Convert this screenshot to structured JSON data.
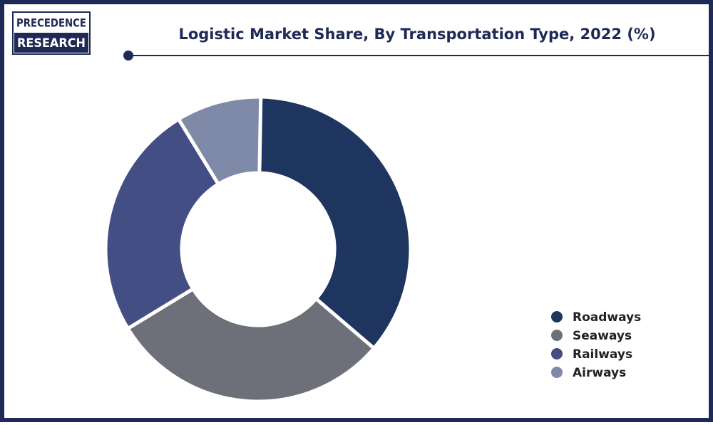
{
  "logo": {
    "line1": "PRECEDENCE",
    "line2": "RESEARCH"
  },
  "chart_data": {
    "type": "donut",
    "title": "Logistic Market Share, By Transportation Type, 2022 (%)",
    "categories": [
      "Roadways",
      "Seaways",
      "Railways",
      "Airways"
    ],
    "values": [
      36,
      30,
      25,
      9
    ],
    "colors": [
      "#1e3560",
      "#6d7078",
      "#434e84",
      "#7f89a8"
    ],
    "legend": "right"
  }
}
